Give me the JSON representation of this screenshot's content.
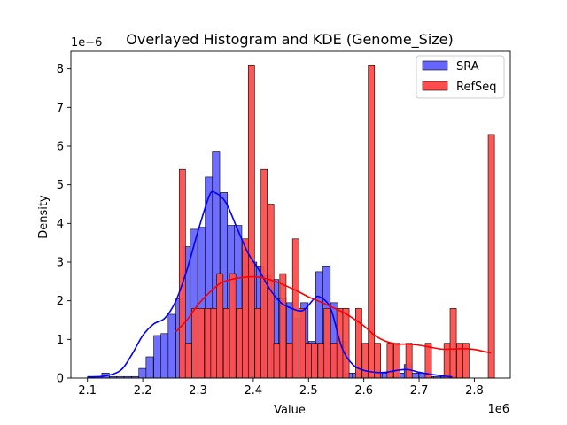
{
  "chart_data": {
    "type": "histogram+kde",
    "title": "Overlayed Histogram and KDE (Genome_Size)",
    "xlabel": "Value",
    "ylabel": "Density",
    "x_offset_label": "1e6",
    "y_offset_label": "1e−6",
    "x_scale": 1000000,
    "y_scale": 1e-06,
    "xlim": [
      2.07,
      2.865
    ],
    "ylim": [
      0,
      8.45
    ],
    "x_ticks": [
      "2.1",
      "2.2",
      "2.3",
      "2.4",
      "2.5",
      "2.6",
      "2.7",
      "2.8"
    ],
    "y_ticks": [
      "0",
      "1",
      "2",
      "3",
      "4",
      "5",
      "6",
      "7",
      "8"
    ],
    "legend": {
      "placement": "top-right",
      "entries": [
        "SRA",
        "RefSeq"
      ]
    },
    "series": [
      {
        "name": "SRA",
        "color": "#0000ff",
        "bar_color": "#6666ff",
        "bin_width": 0.0133,
        "bins": [
          [
            2.1,
            0.04
          ],
          [
            2.113,
            0.04
          ],
          [
            2.126,
            0.13
          ],
          [
            2.14,
            0.04
          ],
          [
            2.153,
            0.04
          ],
          [
            2.166,
            0.04
          ],
          [
            2.18,
            0.04
          ],
          [
            2.193,
            0.25
          ],
          [
            2.206,
            0.55
          ],
          [
            2.22,
            1.1
          ],
          [
            2.233,
            1.15
          ],
          [
            2.246,
            1.65
          ],
          [
            2.26,
            2.05
          ],
          [
            2.273,
            3.4
          ],
          [
            2.286,
            3.85
          ],
          [
            2.3,
            3.9
          ],
          [
            2.313,
            5.2
          ],
          [
            2.326,
            5.85
          ],
          [
            2.34,
            4.8
          ],
          [
            2.353,
            3.95
          ],
          [
            2.366,
            3.95
          ],
          [
            2.38,
            3.3
          ],
          [
            2.393,
            3.0
          ],
          [
            2.406,
            2.9
          ],
          [
            2.42,
            2.65
          ],
          [
            2.433,
            2.55
          ],
          [
            2.446,
            2.05
          ],
          [
            2.46,
            1.95
          ],
          [
            2.473,
            1.55
          ],
          [
            2.486,
            1.95
          ],
          [
            2.5,
            0.95
          ],
          [
            2.513,
            2.75
          ],
          [
            2.526,
            2.9
          ],
          [
            2.54,
            1.95
          ],
          [
            2.553,
            0.95
          ],
          [
            2.566,
            0.13
          ],
          [
            2.58,
            0.13
          ],
          [
            2.593,
            0.13
          ],
          [
            2.606,
            0.04
          ],
          [
            2.62,
            0.13
          ],
          [
            2.633,
            0.13
          ],
          [
            2.646,
            0.04
          ],
          [
            2.66,
            0.13
          ],
          [
            2.673,
            0.35
          ],
          [
            2.686,
            0.13
          ],
          [
            2.7,
            0.13
          ],
          [
            2.713,
            0.04
          ],
          [
            2.726,
            0.04
          ],
          [
            2.74,
            0.04
          ],
          [
            2.753,
            0.04
          ]
        ],
        "kde": [
          [
            2.1,
            0.03
          ],
          [
            2.13,
            0.05
          ],
          [
            2.16,
            0.2
          ],
          [
            2.18,
            0.6
          ],
          [
            2.2,
            1.1
          ],
          [
            2.22,
            1.4
          ],
          [
            2.24,
            1.55
          ],
          [
            2.26,
            2.0
          ],
          [
            2.28,
            2.8
          ],
          [
            2.3,
            3.8
          ],
          [
            2.32,
            4.7
          ],
          [
            2.33,
            4.8
          ],
          [
            2.35,
            4.55
          ],
          [
            2.37,
            3.9
          ],
          [
            2.39,
            3.25
          ],
          [
            2.41,
            2.8
          ],
          [
            2.43,
            2.3
          ],
          [
            2.45,
            1.95
          ],
          [
            2.47,
            1.8
          ],
          [
            2.49,
            1.75
          ],
          [
            2.51,
            2.05
          ],
          [
            2.52,
            2.1
          ],
          [
            2.54,
            1.8
          ],
          [
            2.56,
            0.8
          ],
          [
            2.58,
            0.35
          ],
          [
            2.6,
            0.2
          ],
          [
            2.62,
            0.15
          ],
          [
            2.64,
            0.15
          ],
          [
            2.66,
            0.2
          ],
          [
            2.68,
            0.22
          ],
          [
            2.7,
            0.15
          ],
          [
            2.72,
            0.1
          ],
          [
            2.74,
            0.06
          ],
          [
            2.76,
            0.03
          ]
        ]
      },
      {
        "name": "RefSeq",
        "color": "#ff0000",
        "bar_color": "#ff4d4d",
        "bin_width": 0.0114,
        "bins": [
          [
            2.255,
            0.0
          ],
          [
            2.266,
            5.4
          ],
          [
            2.277,
            0.9
          ],
          [
            2.289,
            1.8
          ],
          [
            2.3,
            1.8
          ],
          [
            2.312,
            1.8
          ],
          [
            2.323,
            1.8
          ],
          [
            2.334,
            2.7
          ],
          [
            2.346,
            1.8
          ],
          [
            2.357,
            2.7
          ],
          [
            2.369,
            1.8
          ],
          [
            2.38,
            3.6
          ],
          [
            2.391,
            8.1
          ],
          [
            2.403,
            1.8
          ],
          [
            2.414,
            5.4
          ],
          [
            2.426,
            4.5
          ],
          [
            2.437,
            0.9
          ],
          [
            2.448,
            2.7
          ],
          [
            2.46,
            0.9
          ],
          [
            2.471,
            3.6
          ],
          [
            2.483,
            1.8
          ],
          [
            2.494,
            0.9
          ],
          [
            2.505,
            0.9
          ],
          [
            2.517,
            0.9
          ],
          [
            2.528,
            1.8
          ],
          [
            2.54,
            0.9
          ],
          [
            2.551,
            1.8
          ],
          [
            2.562,
            1.8
          ],
          [
            2.574,
            0.0
          ],
          [
            2.585,
            1.8
          ],
          [
            2.597,
            0.9
          ],
          [
            2.608,
            8.1
          ],
          [
            2.619,
            0.9
          ],
          [
            2.631,
            0.0
          ],
          [
            2.642,
            0.9
          ],
          [
            2.654,
            0.9
          ],
          [
            2.665,
            0.0
          ],
          [
            2.676,
            0.9
          ],
          [
            2.688,
            0.0
          ],
          [
            2.699,
            0.0
          ],
          [
            2.711,
            0.9
          ],
          [
            2.722,
            0.0
          ],
          [
            2.733,
            0.0
          ],
          [
            2.745,
            0.9
          ],
          [
            2.756,
            1.8
          ],
          [
            2.768,
            0.9
          ],
          [
            2.779,
            0.9
          ],
          [
            2.79,
            0.0
          ],
          [
            2.802,
            0.0
          ],
          [
            2.813,
            0.0
          ],
          [
            2.825,
            6.3
          ]
        ],
        "kde": [
          [
            2.26,
            1.2
          ],
          [
            2.28,
            1.5
          ],
          [
            2.3,
            1.9
          ],
          [
            2.32,
            2.2
          ],
          [
            2.34,
            2.45
          ],
          [
            2.36,
            2.55
          ],
          [
            2.38,
            2.6
          ],
          [
            2.4,
            2.62
          ],
          [
            2.42,
            2.58
          ],
          [
            2.44,
            2.5
          ],
          [
            2.46,
            2.38
          ],
          [
            2.48,
            2.25
          ],
          [
            2.5,
            2.1
          ],
          [
            2.52,
            1.98
          ],
          [
            2.54,
            1.85
          ],
          [
            2.56,
            1.72
          ],
          [
            2.58,
            1.55
          ],
          [
            2.6,
            1.35
          ],
          [
            2.62,
            1.1
          ],
          [
            2.64,
            0.95
          ],
          [
            2.66,
            0.88
          ],
          [
            2.68,
            0.88
          ],
          [
            2.7,
            0.85
          ],
          [
            2.72,
            0.8
          ],
          [
            2.74,
            0.75
          ],
          [
            2.76,
            0.75
          ],
          [
            2.78,
            0.76
          ],
          [
            2.8,
            0.74
          ],
          [
            2.82,
            0.68
          ],
          [
            2.83,
            0.65
          ]
        ]
      }
    ]
  }
}
